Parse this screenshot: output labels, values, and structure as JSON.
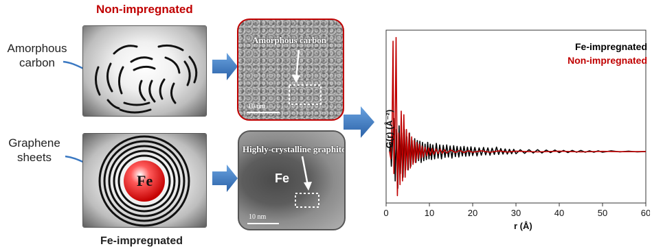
{
  "top_row": {
    "title": "Non-impregnated",
    "left_label_line1": "Amorphous",
    "left_label_line2": "carbon",
    "tem_label": "Amorphous  carbon",
    "scale_bar": "10 nm"
  },
  "bottom_row": {
    "title": "Fe-impregnated",
    "left_label_line1": "Graphene",
    "left_label_line2": "sheets",
    "center_label": "Fe",
    "tem_label": "Highly-crystalline graphite",
    "tem_fe": "Fe",
    "scale_bar": "10 nm"
  },
  "colors": {
    "red": "#c00000",
    "arrow_blue": "#3a78c2",
    "black": "#000000"
  },
  "chart_data": {
    "type": "line",
    "xlabel": "r (Å)",
    "ylabel": "G(r) (Å⁻²)",
    "xlim": [
      0,
      60
    ],
    "x_ticks": [
      "0",
      "10",
      "20",
      "30",
      "40",
      "50",
      "60"
    ],
    "legend_position": "top-right",
    "series": [
      {
        "name": "Fe-impregnated",
        "color": "#000000",
        "points": [
          [
            0.8,
            0
          ],
          [
            1.0,
            0.2
          ],
          [
            1.2,
            -0.4
          ],
          [
            1.5,
            0.3
          ],
          [
            1.8,
            0.9
          ],
          [
            2.1,
            -0.8
          ],
          [
            2.4,
            0.6
          ],
          [
            2.7,
            -1.0
          ],
          [
            3.0,
            0.7
          ],
          [
            3.3,
            -0.6
          ],
          [
            3.6,
            0.5
          ],
          [
            3.9,
            -0.7
          ],
          [
            4.2,
            0.6
          ],
          [
            4.5,
            -0.5
          ],
          [
            4.8,
            0.4
          ],
          [
            5.1,
            -0.5
          ],
          [
            5.4,
            0.5
          ],
          [
            5.7,
            -0.4
          ],
          [
            6.0,
            0.3
          ],
          [
            6.3,
            -0.3
          ],
          [
            6.6,
            0.35
          ],
          [
            6.9,
            -0.3
          ],
          [
            7.2,
            0.3
          ],
          [
            7.5,
            -0.25
          ],
          [
            7.8,
            0.28
          ],
          [
            8.1,
            -0.3
          ],
          [
            8.4,
            0.25
          ],
          [
            8.7,
            -0.25
          ],
          [
            9.0,
            0.2
          ],
          [
            9.3,
            -0.22
          ],
          [
            9.6,
            0.25
          ],
          [
            9.9,
            -0.2
          ],
          [
            10.2,
            0.2
          ],
          [
            10.5,
            -0.22
          ],
          [
            10.8,
            0.18
          ],
          [
            11.2,
            -0.2
          ],
          [
            11.6,
            0.22
          ],
          [
            12.0,
            -0.18
          ],
          [
            12.4,
            0.18
          ],
          [
            12.8,
            -0.2
          ],
          [
            13.2,
            0.17
          ],
          [
            13.6,
            -0.16
          ],
          [
            14.0,
            0.18
          ],
          [
            14.4,
            -0.15
          ],
          [
            14.8,
            0.15
          ],
          [
            15.2,
            -0.18
          ],
          [
            15.6,
            0.16
          ],
          [
            16.0,
            -0.14
          ],
          [
            16.4,
            0.14
          ],
          [
            16.8,
            -0.15
          ],
          [
            17.2,
            0.13
          ],
          [
            17.6,
            -0.12
          ],
          [
            18.0,
            0.14
          ],
          [
            18.4,
            -0.13
          ],
          [
            18.8,
            0.12
          ],
          [
            19.2,
            -0.12
          ],
          [
            19.6,
            0.13
          ],
          [
            20.0,
            -0.11
          ],
          [
            20.5,
            0.11
          ],
          [
            21.0,
            -0.12
          ],
          [
            21.5,
            0.1
          ],
          [
            22.0,
            -0.1
          ],
          [
            22.5,
            0.11
          ],
          [
            23.0,
            -0.09
          ],
          [
            23.5,
            0.1
          ],
          [
            24.0,
            -0.1
          ],
          [
            24.5,
            0.09
          ],
          [
            25.0,
            -0.08
          ],
          [
            25.5,
            0.12
          ],
          [
            26.0,
            -0.08
          ],
          [
            26.5,
            0.08
          ],
          [
            27.0,
            -0.07
          ],
          [
            27.5,
            0.07
          ],
          [
            28.0,
            -0.07
          ],
          [
            28.5,
            0.06
          ],
          [
            29.0,
            -0.06
          ],
          [
            29.5,
            0.06
          ],
          [
            30.0,
            -0.06
          ],
          [
            31.0,
            0.05
          ],
          [
            32.0,
            -0.05
          ],
          [
            33.0,
            0.05
          ],
          [
            34.0,
            -0.04
          ],
          [
            35.0,
            0.05
          ],
          [
            36.0,
            -0.04
          ],
          [
            37.0,
            0.04
          ],
          [
            38.0,
            -0.03
          ],
          [
            39.0,
            0.04
          ],
          [
            40.0,
            -0.03
          ],
          [
            41.0,
            0.03
          ],
          [
            42.0,
            -0.03
          ],
          [
            43.0,
            0.03
          ],
          [
            44.0,
            -0.02
          ],
          [
            45.0,
            0.03
          ],
          [
            46.0,
            -0.02
          ],
          [
            47.0,
            0.02
          ],
          [
            48.0,
            -0.02
          ],
          [
            49.0,
            0.02
          ],
          [
            50.0,
            -0.02
          ],
          [
            52.0,
            0.02
          ],
          [
            54.0,
            -0.01
          ],
          [
            56.0,
            0.01
          ],
          [
            58.0,
            -0.01
          ],
          [
            60.0,
            0.0
          ]
        ]
      },
      {
        "name": "Non-impregnated",
        "color": "#c00000",
        "points": [
          [
            0.8,
            0
          ],
          [
            1.1,
            -0.2
          ],
          [
            1.4,
            0.9
          ],
          [
            1.6,
            3.0
          ],
          [
            1.8,
            -0.6
          ],
          [
            2.1,
            0.8
          ],
          [
            2.3,
            3.1
          ],
          [
            2.6,
            -1.2
          ],
          [
            2.9,
            0.5
          ],
          [
            3.2,
            -0.9
          ],
          [
            3.5,
            1.1
          ],
          [
            3.8,
            -0.8
          ],
          [
            4.1,
            1.0
          ],
          [
            4.4,
            -0.7
          ],
          [
            4.7,
            0.6
          ],
          [
            5.0,
            -0.5
          ],
          [
            5.3,
            0.5
          ],
          [
            5.6,
            -0.45
          ],
          [
            5.9,
            0.4
          ],
          [
            6.2,
            -0.35
          ],
          [
            6.5,
            0.3
          ],
          [
            6.8,
            -0.3
          ],
          [
            7.1,
            0.25
          ],
          [
            7.4,
            -0.2
          ],
          [
            7.7,
            0.2
          ],
          [
            8.0,
            -0.18
          ],
          [
            8.3,
            0.15
          ],
          [
            8.6,
            -0.15
          ],
          [
            9.0,
            0.12
          ],
          [
            9.4,
            -0.12
          ],
          [
            9.8,
            0.1
          ],
          [
            10.2,
            -0.1
          ],
          [
            10.6,
            0.08
          ],
          [
            11.0,
            -0.08
          ],
          [
            11.5,
            0.07
          ],
          [
            12.0,
            -0.06
          ],
          [
            12.5,
            0.06
          ],
          [
            13.0,
            -0.05
          ],
          [
            13.5,
            0.05
          ],
          [
            14.0,
            -0.04
          ],
          [
            15.0,
            0.04
          ],
          [
            16.0,
            -0.03
          ],
          [
            17.0,
            0.03
          ],
          [
            18.0,
            -0.03
          ],
          [
            19.0,
            0.02
          ],
          [
            20.0,
            -0.02
          ],
          [
            22.0,
            0.02
          ],
          [
            24.0,
            -0.02
          ],
          [
            26.0,
            0.015
          ],
          [
            28.0,
            -0.015
          ],
          [
            30.0,
            0.01
          ],
          [
            35.0,
            -0.01
          ],
          [
            40.0,
            0.01
          ],
          [
            45.0,
            -0.01
          ],
          [
            50.0,
            0.005
          ],
          [
            55.0,
            -0.005
          ],
          [
            60.0,
            0.0
          ]
        ]
      }
    ]
  }
}
